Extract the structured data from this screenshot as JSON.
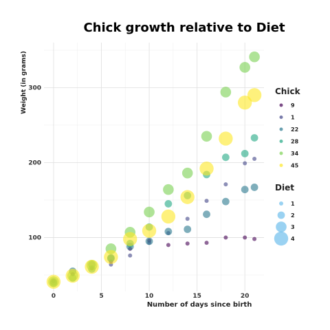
{
  "chart_data": {
    "type": "scatter",
    "title": "Chick growth relative to Diet",
    "xlabel": "Number of days since birth",
    "ylabel": "Weight (in grams)",
    "xlim": [
      -1,
      22
    ],
    "ylim": [
      28,
      360
    ],
    "x_ticks": [
      0,
      5,
      10,
      15,
      20
    ],
    "y_ticks": [
      100,
      200,
      300
    ],
    "grid": true,
    "legend_placement": "right",
    "color_legend": {
      "title": "Chick",
      "entries": [
        {
          "label": "9",
          "color": "#440154"
        },
        {
          "label": "1",
          "color": "#414487"
        },
        {
          "label": "22",
          "color": "#2a788e"
        },
        {
          "label": "28",
          "color": "#22a884"
        },
        {
          "label": "34",
          "color": "#7ad151"
        },
        {
          "label": "45",
          "color": "#fde725"
        }
      ]
    },
    "size_legend": {
      "title": "Diet",
      "entries": [
        {
          "label": "1",
          "diet": 1
        },
        {
          "label": "2",
          "diet": 2
        },
        {
          "label": "3",
          "diet": 3
        },
        {
          "label": "4",
          "diet": 4
        }
      ],
      "color": "#56b4e9"
    },
    "series": [
      {
        "name": "9",
        "diet": 1,
        "color": "#440154",
        "x": [
          0,
          2,
          4,
          6,
          8,
          10,
          12,
          14,
          16,
          18,
          20,
          21
        ],
        "y": [
          42,
          51,
          59,
          68,
          85,
          96,
          90,
          92,
          93,
          100,
          100,
          98
        ]
      },
      {
        "name": "1",
        "diet": 1,
        "color": "#414487",
        "x": [
          0,
          2,
          4,
          6,
          8,
          10,
          12,
          14,
          16,
          18,
          20,
          21
        ],
        "y": [
          42,
          51,
          59,
          64,
          76,
          93,
          106,
          125,
          149,
          171,
          199,
          205
        ]
      },
      {
        "name": "22",
        "diet": 2,
        "color": "#2a788e",
        "x": [
          0,
          2,
          4,
          6,
          8,
          10,
          12,
          14,
          16,
          18,
          20,
          21
        ],
        "y": [
          41,
          55,
          64,
          72,
          88,
          95,
          108,
          111,
          131,
          148,
          164,
          167
        ]
      },
      {
        "name": "28",
        "diet": 2,
        "color": "#22a884",
        "x": [
          0,
          2,
          4,
          6,
          8,
          10,
          12,
          14,
          16,
          18,
          20,
          21
        ],
        "y": [
          39,
          46,
          58,
          73,
          92,
          114,
          145,
          156,
          184,
          207,
          212,
          233
        ]
      },
      {
        "name": "34",
        "diet": 3,
        "color": "#7ad151",
        "x": [
          0,
          2,
          4,
          6,
          8,
          10,
          12,
          14,
          16,
          18,
          20,
          21
        ],
        "y": [
          41,
          49,
          63,
          85,
          107,
          134,
          164,
          186,
          235,
          294,
          327,
          341
        ]
      },
      {
        "name": "45",
        "diet": 4,
        "color": "#fde725",
        "x": [
          0,
          2,
          4,
          6,
          8,
          10,
          12,
          14,
          16,
          18,
          20,
          21
        ],
        "y": [
          41,
          49,
          61,
          74,
          98,
          109,
          128,
          154,
          192,
          232,
          280,
          290
        ]
      }
    ]
  }
}
